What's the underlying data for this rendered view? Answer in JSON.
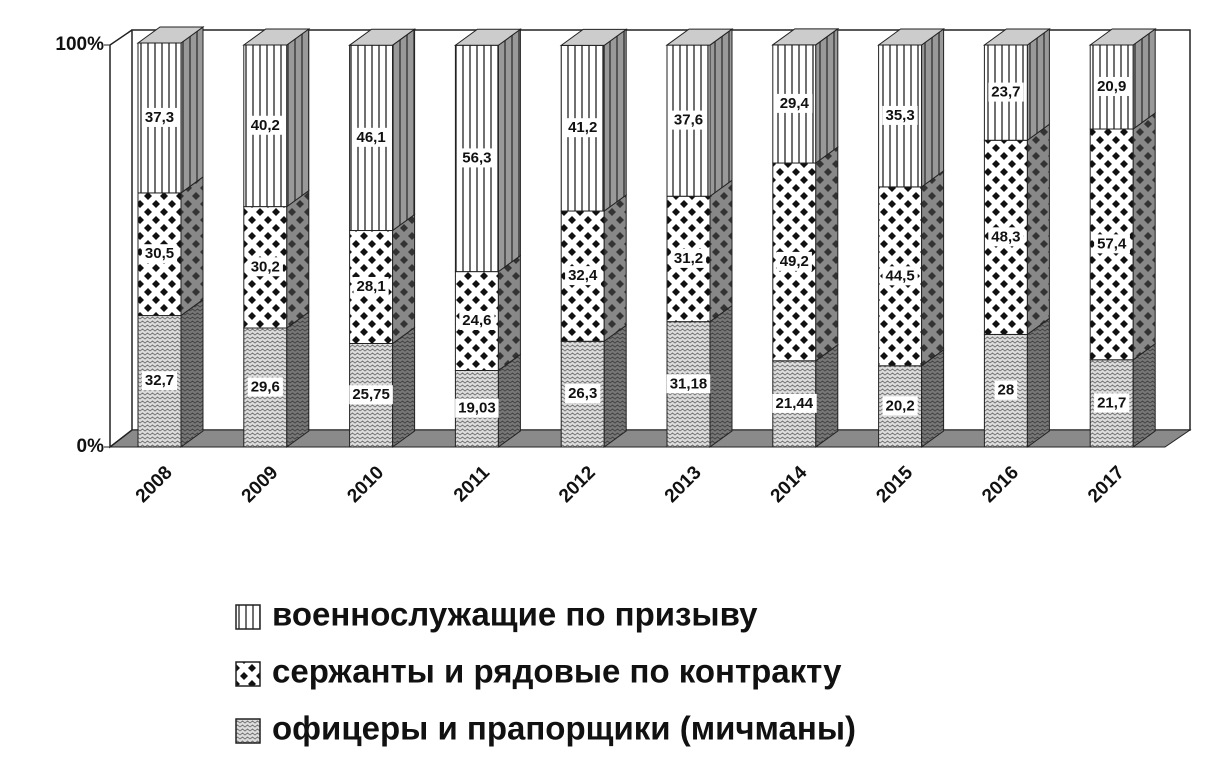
{
  "chart_data": {
    "type": "bar3d_stacked",
    "categories": [
      "2008",
      "2009",
      "2010",
      "2011",
      "2012",
      "2013",
      "2014",
      "2015",
      "2016",
      "2017"
    ],
    "series": [
      {
        "name": "военнослужащие по призыву",
        "values": [
          37.3,
          40.2,
          46.1,
          56.3,
          41.2,
          37.6,
          29.4,
          35.3,
          23.7,
          20.9
        ],
        "value_labels": [
          "37,3",
          "40,2",
          "46,1",
          "56,3",
          "41,2",
          "37,6",
          "29,4",
          "35,3",
          "23,7",
          "20,9"
        ]
      },
      {
        "name": "сержанты и рядовые по контракту",
        "values": [
          30.5,
          30.2,
          28.1,
          24.6,
          32.4,
          31.2,
          49.2,
          44.5,
          48.3,
          57.4
        ],
        "value_labels": [
          "30,5",
          "30,2",
          "28,1",
          "24,6",
          "32,4",
          "31,2",
          "49,2",
          "44,5",
          "48,3",
          "57,4"
        ]
      },
      {
        "name": "офицеры и прапорщики (мичманы)",
        "values": [
          32.7,
          29.6,
          25.75,
          19.03,
          26.3,
          31.18,
          21.44,
          20.2,
          28,
          21.7
        ],
        "value_labels": [
          "32,7",
          "29,6",
          "25,75",
          "19,03",
          "26,3",
          "31,18",
          "21,44",
          "20,2",
          "28",
          "21,7"
        ]
      }
    ],
    "ylim": [
      0,
      100
    ],
    "yticks": [
      {
        "value": 0,
        "label": "0%"
      },
      {
        "value": 100,
        "label": "100%"
      }
    ]
  }
}
